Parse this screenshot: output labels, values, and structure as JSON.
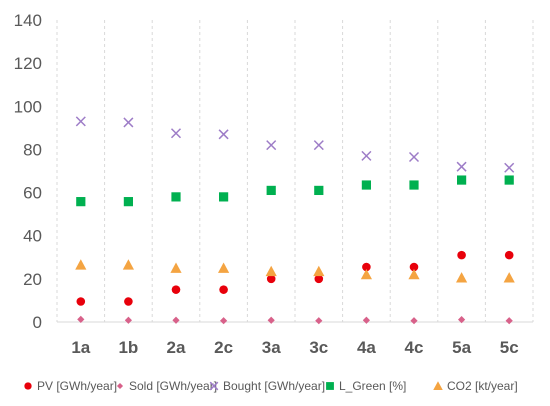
{
  "chart_data": {
    "type": "scatter",
    "categories": [
      "1a",
      "1b",
      "2a",
      "2c",
      "3a",
      "3c",
      "4a",
      "4c",
      "5a",
      "5c"
    ],
    "ylim": [
      0,
      140
    ],
    "yticks": [
      0,
      20,
      40,
      60,
      80,
      100,
      120,
      140
    ],
    "grid": {
      "horizontal": false,
      "vertical": "dashed"
    },
    "legend_position": "bottom",
    "series": [
      {
        "name": "PV [GWh/year]",
        "marker": "circle",
        "color": "#E8000B",
        "values": [
          9.5,
          9.5,
          15,
          15,
          20,
          20,
          25.5,
          25.5,
          31,
          31
        ]
      },
      {
        "name": "Sold [GWh/year]",
        "marker": "diamond",
        "color": "#D8618A",
        "values": [
          1.2,
          0.8,
          0.8,
          0.6,
          0.8,
          0.6,
          0.8,
          0.6,
          1.1,
          0.6
        ]
      },
      {
        "name": "Bought [GWh/year]",
        "marker": "x",
        "color": "#9D7CC7",
        "values": [
          93,
          92.5,
          87.5,
          87,
          82,
          82,
          77,
          76.5,
          72,
          71.5
        ]
      },
      {
        "name": "L_Green [%]",
        "marker": "square",
        "color": "#00B050",
        "values": [
          55.8,
          55.8,
          58,
          58,
          61,
          61,
          63.5,
          63.5,
          65.8,
          65.8
        ]
      },
      {
        "name": "CO2 [kt/year]",
        "marker": "triangle",
        "color": "#F4A442",
        "values": [
          26.5,
          26.5,
          25,
          25,
          23.5,
          23.5,
          22,
          22,
          20.5,
          20.5
        ]
      }
    ]
  }
}
